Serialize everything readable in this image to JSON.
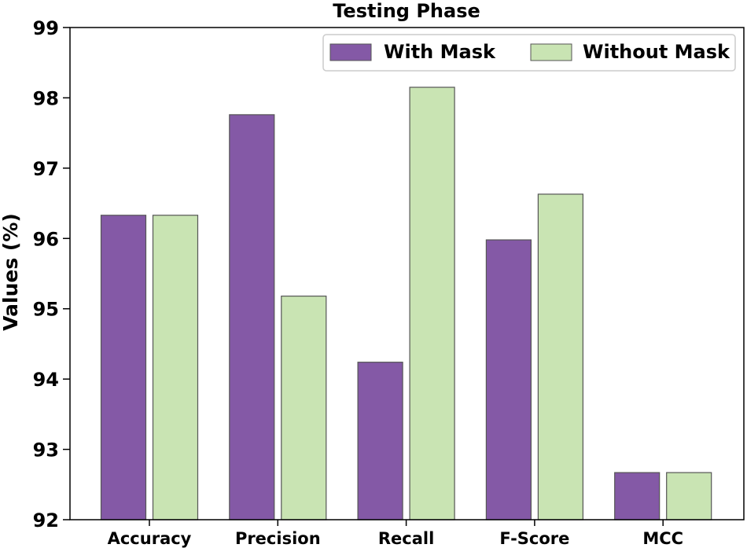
{
  "chart_data": {
    "type": "bar",
    "title": "Testing Phase",
    "xlabel": "",
    "ylabel": "Values (%)",
    "categories": [
      "Accuracy",
      "Precision",
      "Recall",
      "F-Score",
      "MCC"
    ],
    "series": [
      {
        "name": "With Mask",
        "values": [
          96.33,
          97.76,
          94.24,
          95.98,
          92.67
        ]
      },
      {
        "name": "Without Mask",
        "values": [
          96.33,
          95.18,
          98.15,
          96.63,
          92.67
        ]
      }
    ],
    "ylim": [
      92,
      99
    ],
    "yticks": [
      "92",
      "93",
      "94",
      "95",
      "96",
      "97",
      "98",
      "99"
    ],
    "grid": false,
    "legend_position": "top-right",
    "colors": {
      "With Mask": "#8459a6",
      "Without Mask": "#c9e4b3",
      "edge": "#555555"
    }
  }
}
